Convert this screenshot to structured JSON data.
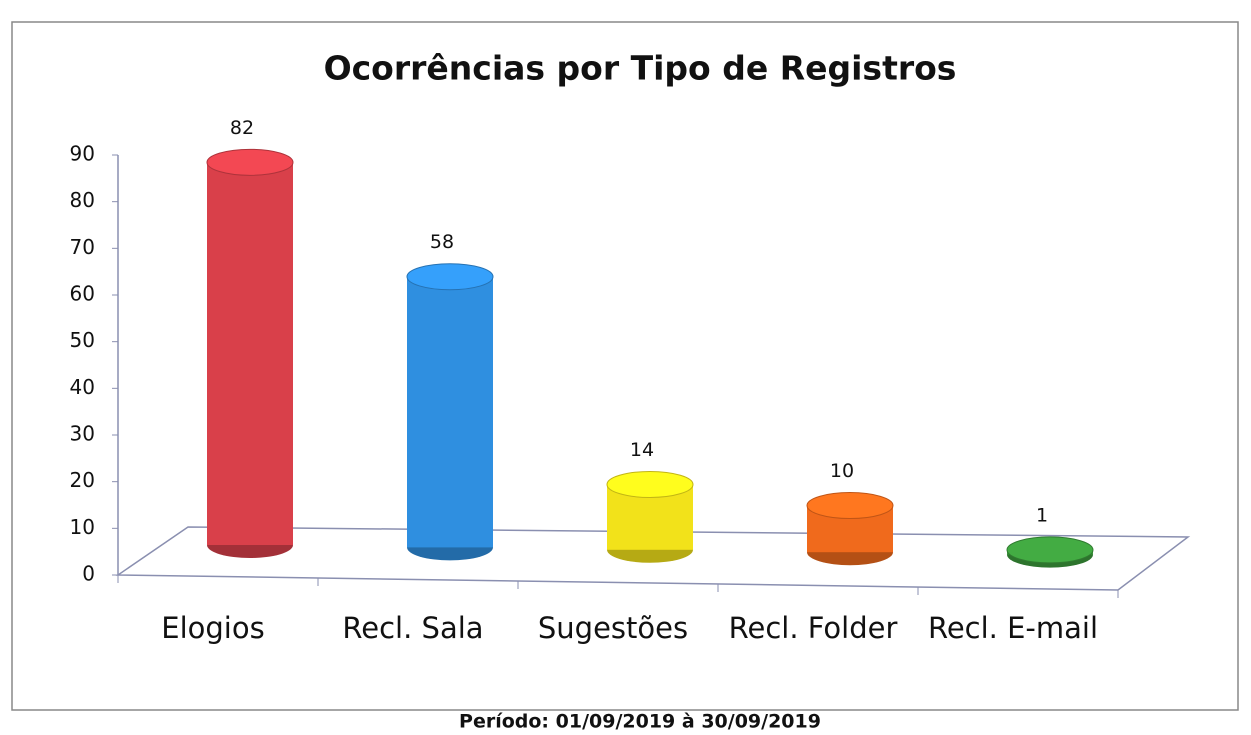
{
  "chart_data": {
    "type": "bar",
    "title": "Ocorrências por Tipo de Registros",
    "categories": [
      "Elogios",
      "Recl. Sala",
      "Sugestões",
      "Recl. Folder",
      "Recl. E-mail"
    ],
    "values": [
      82,
      58,
      14,
      10,
      1
    ],
    "colors": [
      "#d9404a",
      "#2f8fe0",
      "#f2e21a",
      "#f06a1c",
      "#3c9a3c"
    ],
    "ylim": [
      0,
      90
    ],
    "yticks": [
      0,
      10,
      20,
      30,
      40,
      50,
      60,
      70,
      80,
      90
    ],
    "footer": "Período: 01/09/2019 à 30/09/2019"
  }
}
